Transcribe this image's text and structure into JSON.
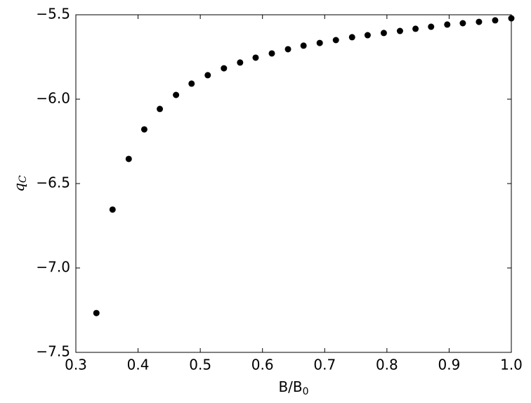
{
  "chart_data": {
    "type": "scatter",
    "xlabel": "B/B",
    "xlabel_sub": "0",
    "ylabel": "q",
    "ylabel_sub": "C",
    "color": "#000000",
    "x": [
      0.333,
      0.359,
      0.385,
      0.41,
      0.435,
      0.461,
      0.486,
      0.512,
      0.538,
      0.564,
      0.589,
      0.615,
      0.641,
      0.666,
      0.692,
      0.718,
      0.744,
      0.769,
      0.795,
      0.821,
      0.846,
      0.871,
      0.897,
      0.922,
      0.948,
      0.974,
      1.0
    ],
    "values": [
      -7.267,
      -6.654,
      -6.354,
      -6.179,
      -6.058,
      -5.975,
      -5.908,
      -5.858,
      -5.817,
      -5.783,
      -5.754,
      -5.729,
      -5.704,
      -5.683,
      -5.667,
      -5.65,
      -5.633,
      -5.621,
      -5.608,
      -5.596,
      -5.583,
      -5.571,
      -5.558,
      -5.55,
      -5.542,
      -5.533,
      -5.521
    ],
    "xlim": [
      0.3,
      1.0
    ],
    "xticks": [
      0.3,
      0.4,
      0.5,
      0.6,
      0.7,
      0.8,
      0.9,
      {
        "value": 1.0,
        "label": "1.0"
      }
    ],
    "ylim": [
      -7.5,
      -5.5
    ],
    "yticks": [
      {
        "value": -7.5,
        "label": "−7.5"
      },
      {
        "value": -7.0,
        "label": "−7.0"
      },
      {
        "value": -6.5,
        "label": "−6.5"
      },
      {
        "value": -6.0,
        "label": "−6.0"
      },
      {
        "value": -5.5,
        "label": "−5.5"
      }
    ],
    "grid": false
  }
}
